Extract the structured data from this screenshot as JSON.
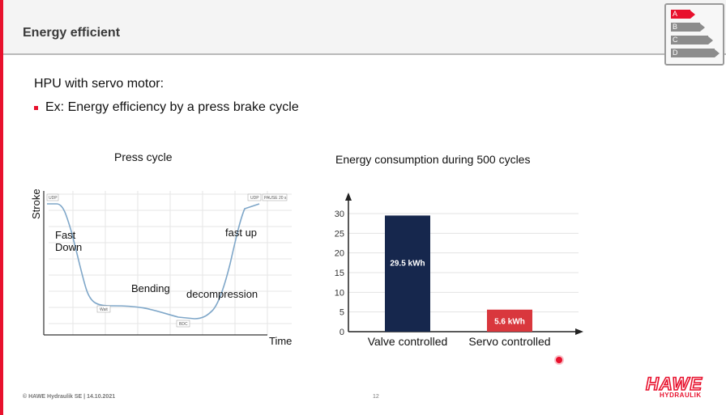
{
  "slide": {
    "title": "Energy efficient",
    "heading": "HPU with servo motor:",
    "bullet": "Ex: Energy efficiency by a press brake cycle"
  },
  "energy_label": {
    "classes": [
      "A",
      "B",
      "C",
      "D"
    ],
    "colors": [
      "#e8112d",
      "#8c8c8c",
      "#8c8c8c",
      "#8c8c8c"
    ]
  },
  "press_cycle": {
    "caption": "Press cycle",
    "y_axis_label": "Stroke",
    "x_axis_label": "Time",
    "phases": [
      "Fast\nDown",
      "Bending",
      "decompression",
      "fast up"
    ],
    "markers": [
      "UDP",
      "Wait",
      "BDC",
      "UDP",
      "PAUSE 20 s"
    ]
  },
  "energy_chart": {
    "caption": "Energy consumption during 500 cycles"
  },
  "chart_data": {
    "type": "bar",
    "title": "Energy consumption during 500 cycles",
    "categories": [
      "Valve controlled",
      "Servo controlled"
    ],
    "values": [
      29.5,
      5.6
    ],
    "data_labels": [
      "29.5 kWh",
      "5.6 kWh"
    ],
    "colors": [
      "#16274d",
      "#d9373d"
    ],
    "ylim": [
      0,
      30
    ],
    "yticks": [
      0,
      5,
      10,
      15,
      20,
      25,
      30
    ],
    "grid": true
  },
  "footer": {
    "copyright": "© HAWE Hydraulik SE | 14.10.2021",
    "page_number": "12",
    "logo_text": "HAWE",
    "logo_subtext": "HYDRAULIK"
  }
}
